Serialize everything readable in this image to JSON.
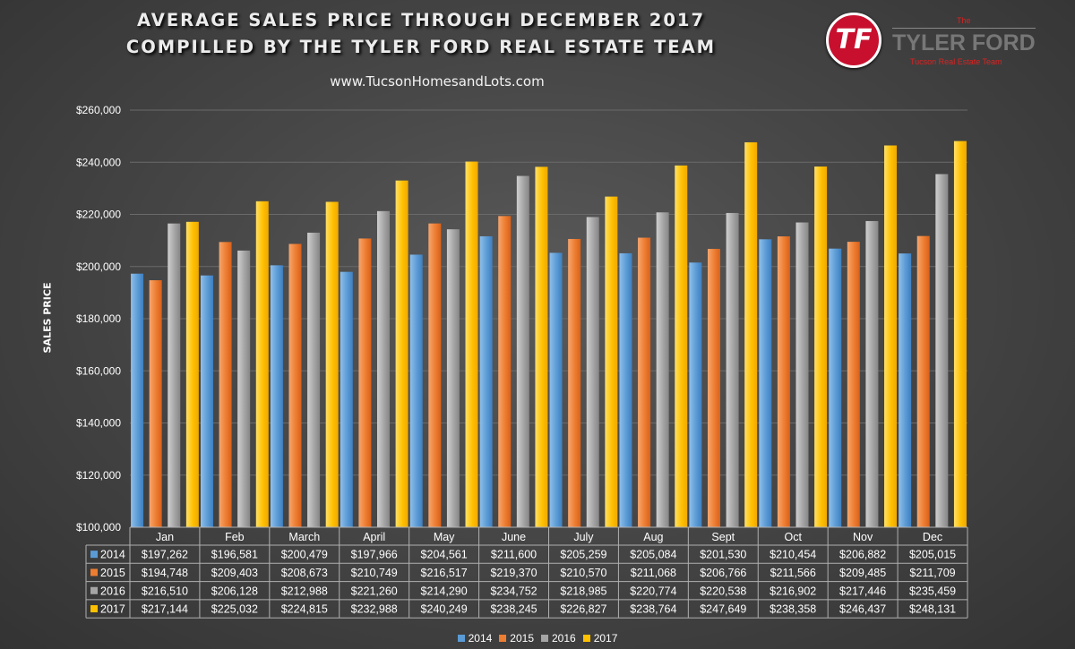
{
  "header": {
    "title_line1": "AVERAGE SALES PRICE THROUGH DECEMBER 2017",
    "title_line2": "COMPILLED BY THE TYLER FORD REAL ESTATE TEAM",
    "website": "www.TucsonHomesandLots.com"
  },
  "logo": {
    "monogram": "TF",
    "the": "The",
    "name": "TYLER FORD",
    "tagline": "Tucson Real Estate Team"
  },
  "colors": {
    "2014": "#5b9bd5",
    "2015": "#ed7d31",
    "2016": "#a5a5a5",
    "2017": "#ffc000",
    "logo_red": "#c8102e"
  },
  "chart_data": {
    "type": "bar",
    "title": "",
    "xlabel": "",
    "ylabel": "SALES PRICE",
    "ylim": [
      100000,
      260000
    ],
    "y_ticks": [
      "$100,000",
      "$120,000",
      "$140,000",
      "$160,000",
      "$180,000",
      "$200,000",
      "$220,000",
      "$240,000",
      "$260,000"
    ],
    "grid": true,
    "legend_position": "bottom",
    "categories": [
      "Jan",
      "Feb",
      "March",
      "April",
      "May",
      "June",
      "July",
      "Aug",
      "Sept",
      "Oct",
      "Nov",
      "Dec"
    ],
    "series": [
      {
        "name": "2014",
        "values": [
          197262,
          196581,
          200479,
          197966,
          204561,
          211600,
          205259,
          205084,
          201530,
          210454,
          206882,
          205015
        ],
        "labels": [
          "$197,262",
          "$196,581",
          "$200,479",
          "$197,966",
          "$204,561",
          "$211,600",
          "$205,259",
          "$205,084",
          "$201,530",
          "$210,454",
          "$206,882",
          "$205,015"
        ]
      },
      {
        "name": "2015",
        "values": [
          194748,
          209403,
          208673,
          210749,
          216517,
          219370,
          210570,
          211068,
          206766,
          211566,
          209485,
          211709
        ],
        "labels": [
          "$194,748",
          "$209,403",
          "$208,673",
          "$210,749",
          "$216,517",
          "$219,370",
          "$210,570",
          "$211,068",
          "$206,766",
          "$211,566",
          "$209,485",
          "$211,709"
        ]
      },
      {
        "name": "2016",
        "values": [
          216510,
          206128,
          212988,
          221260,
          214290,
          234752,
          218985,
          220774,
          220538,
          216902,
          217446,
          235459
        ],
        "labels": [
          "$216,510",
          "$206,128",
          "$212,988",
          "$221,260",
          "$214,290",
          "$234,752",
          "$218,985",
          "$220,774",
          "$220,538",
          "$216,902",
          "$217,446",
          "$235,459"
        ]
      },
      {
        "name": "2017",
        "values": [
          217144,
          225032,
          224815,
          232988,
          240249,
          238245,
          226827,
          238764,
          247649,
          238358,
          246437,
          248131
        ],
        "labels": [
          "$217,144",
          "$225,032",
          "$224,815",
          "$232,988",
          "$240,249",
          "$238,245",
          "$226,827",
          "$238,764",
          "$247,649",
          "$238,358",
          "$246,437",
          "$248,131"
        ]
      }
    ]
  }
}
